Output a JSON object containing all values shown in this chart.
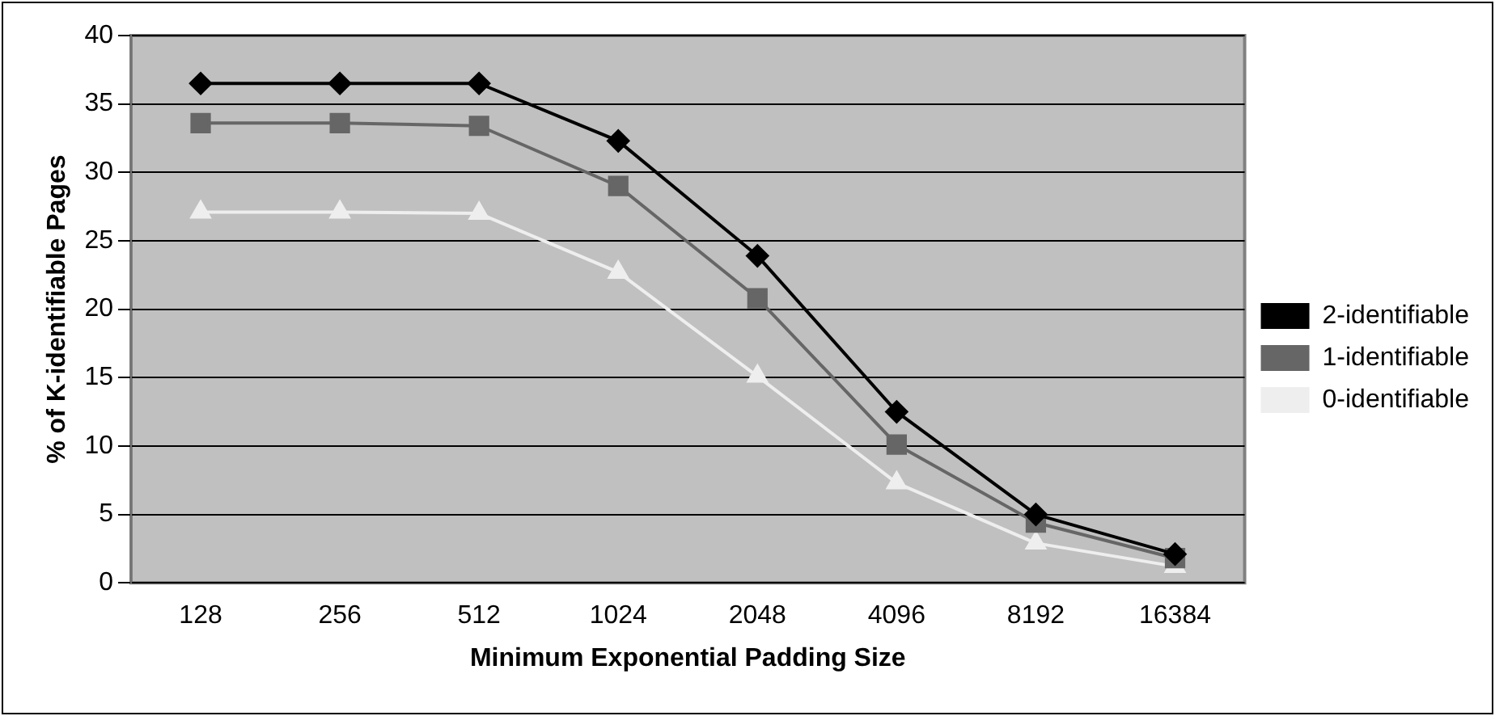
{
  "chart_data": {
    "type": "line",
    "xlabel": "Minimum Exponential Padding Size",
    "ylabel": "% of K-identifiable Pages",
    "categories": [
      "128",
      "256",
      "512",
      "1024",
      "2048",
      "4096",
      "8192",
      "16384"
    ],
    "series": [
      {
        "name": "2-identifiable",
        "color": "#000000",
        "marker": "diamond",
        "values": [
          36.5,
          36.5,
          36.5,
          32.3,
          23.9,
          12.5,
          5,
          2.1
        ]
      },
      {
        "name": "1-identifiable",
        "color": "#666666",
        "marker": "square",
        "values": [
          33.6,
          33.6,
          33.4,
          29,
          20.8,
          10.1,
          4.4,
          1.8
        ]
      },
      {
        "name": "0-identifiable",
        "color": "#eeeeee",
        "marker": "triangle",
        "values": [
          27.1,
          27.1,
          27,
          22.7,
          15.1,
          7.3,
          2.9,
          1.2
        ]
      }
    ],
    "ylim": [
      0,
      40
    ],
    "yticks": [
      0,
      5,
      10,
      15,
      20,
      25,
      30,
      35,
      40
    ],
    "grid": "y",
    "legend": "right"
  }
}
